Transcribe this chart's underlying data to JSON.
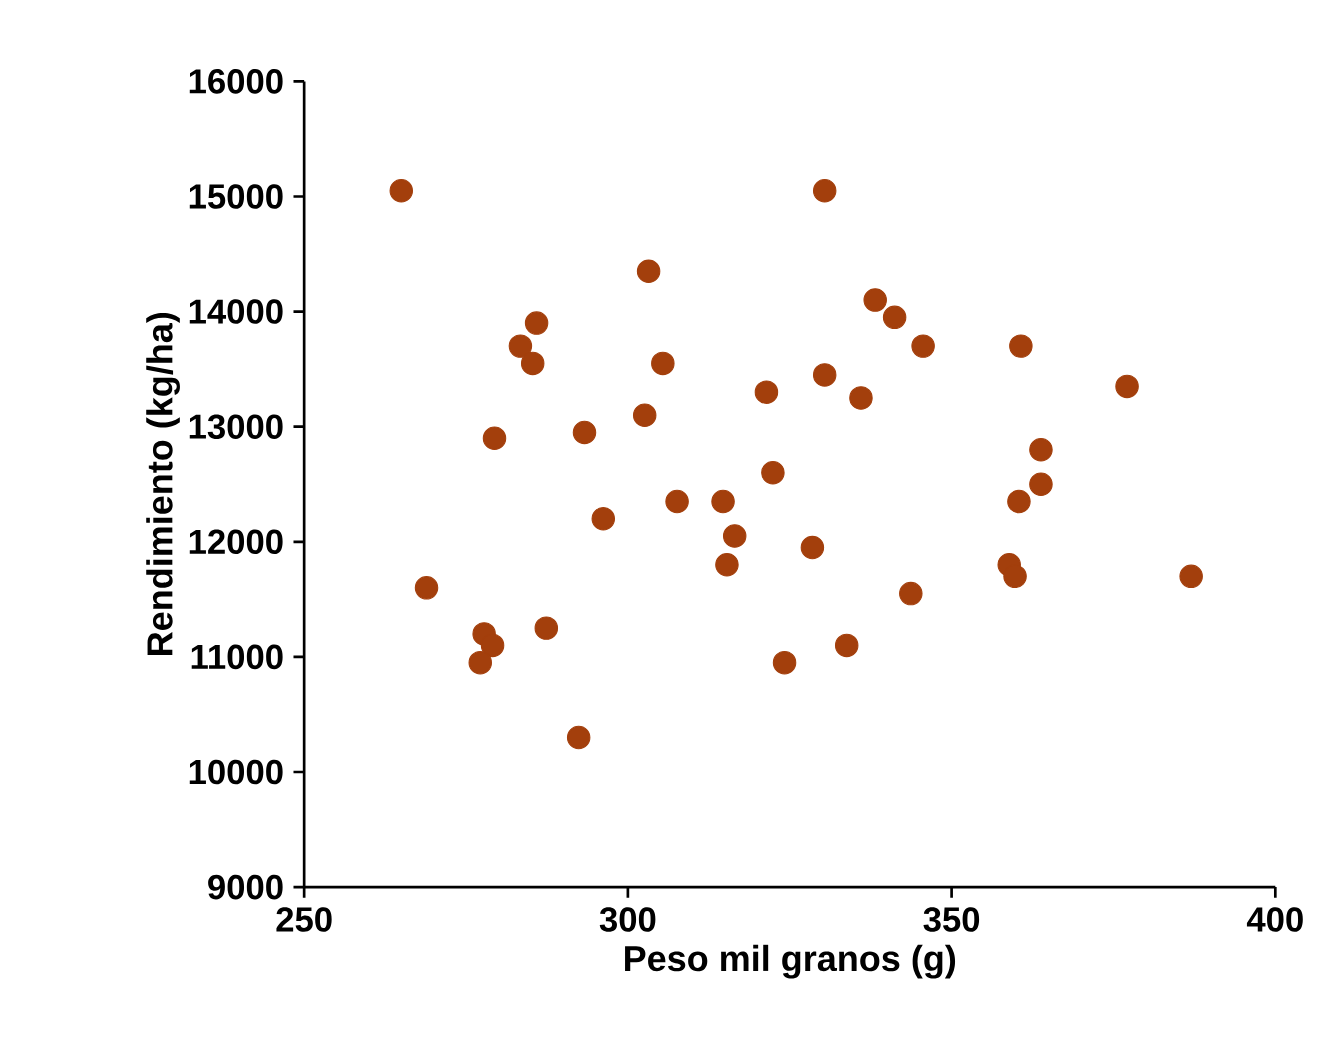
{
  "chart_data": {
    "type": "scatter",
    "xlabel": "Peso mil granos (g)",
    "ylabel": "Rendimiento (kg/ha)",
    "x": [
      265,
      330.4,
      303.2,
      285.9,
      283.4,
      285.3,
      305.4,
      338.2,
      341.2,
      345.6,
      360.7,
      330.4,
      336,
      321.4,
      302.6,
      377.1,
      279.4,
      293.3,
      322.4,
      363.8,
      360.4,
      363.8,
      307.6,
      314.7,
      296.2,
      316.5,
      328.5,
      315.3,
      358.9,
      359.8,
      387,
      268.9,
      343.7,
      287.4,
      277.8,
      279.1,
      277.2,
      333.8,
      324.2,
      292.4
    ],
    "values": [
      15050,
      15050,
      14350,
      13900,
      13700,
      13550,
      13550,
      14100,
      13950,
      13700,
      13700,
      13450,
      13250,
      13300,
      13100,
      13350,
      12900,
      12950,
      12600,
      12800,
      12350,
      12500,
      12350,
      12350,
      12200,
      12050,
      11950,
      11800,
      11800,
      11700,
      11700,
      11600,
      11550,
      11250,
      11200,
      11100,
      10950,
      11100,
      10950,
      10300
    ],
    "color": "#a33f0c",
    "marker": "circle",
    "grid": false,
    "xlim": [
      250,
      400
    ],
    "xticks": [
      250,
      300,
      350,
      400
    ],
    "ylim": [
      9000,
      16000
    ],
    "yticks": [
      9000,
      10000,
      11000,
      12000,
      13000,
      14000,
      15000,
      16000
    ]
  }
}
